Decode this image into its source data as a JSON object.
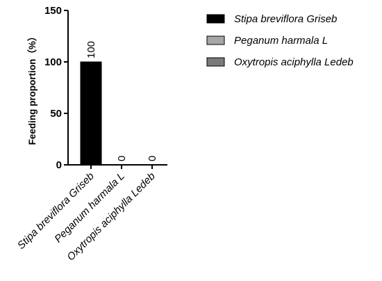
{
  "chart_data": {
    "type": "bar",
    "categories": [
      "Stipa breviflora Griseb",
      "Peganum harmala L",
      "Oxytropis aciphylla Ledeb"
    ],
    "values": [
      100,
      0,
      0
    ],
    "data_labels": [
      "100",
      "0",
      "0"
    ],
    "ylabel": "Feeding proportion（%）",
    "ylim": [
      0,
      150
    ],
    "yticks": [
      0,
      50,
      100,
      150
    ],
    "grid": false,
    "legend_position": "top-right",
    "colors": [
      "#000000",
      "#a6a6a6",
      "#7a7a7a"
    ],
    "legend": [
      {
        "label": "Stipa breviflora Griseb",
        "color": "#000000"
      },
      {
        "label": "Peganum harmala L",
        "color": "#a6a6a6"
      },
      {
        "label": "Oxytropis aciphylla Ledeb",
        "color": "#7a7a7a"
      }
    ]
  }
}
